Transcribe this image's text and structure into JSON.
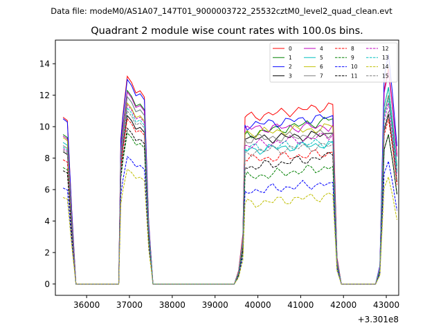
{
  "figure": {
    "suptitle": "Data file: modeM0/AS1A07_147T01_9000003722_25532cztM0_level2_quad_clean.evt",
    "title": "Quadrant 2 module wise count rates with 100.0s bins.",
    "offset_label": "+3.301e8"
  },
  "chart_data": {
    "type": "line",
    "title": "Quadrant 2 module wise count rates with 100.0s bins.",
    "xlabel": "",
    "ylabel": "",
    "x_offset": 330100000,
    "xlim": [
      35270,
      43290
    ],
    "ylim": [
      -0.72,
      15.5
    ],
    "xticks": [
      36000,
      37000,
      38000,
      39000,
      40000,
      41000,
      42000,
      43000
    ],
    "yticks": [
      0,
      2,
      4,
      6,
      8,
      10,
      12,
      14
    ],
    "xtick_labels": [
      "36000",
      "37000",
      "38000",
      "39000",
      "40000",
      "41000",
      "42000",
      "43000"
    ],
    "ytick_labels": [
      "0",
      "2",
      "4",
      "6",
      "8",
      "10",
      "12",
      "14"
    ],
    "grid": false,
    "legend": {
      "placement": "top-right",
      "columns": 4
    },
    "segments": [
      {
        "start": 35450,
        "end": 37550
      },
      {
        "start": 39550,
        "end": 41850
      },
      {
        "start": 42950,
        "end": 43250
      }
    ],
    "series": [
      {
        "name": "0",
        "color": "#ff0000",
        "style": "solid",
        "levels": [
          10.6,
          13.2,
          10.6,
          11.3,
          13.7
        ]
      },
      {
        "name": "1",
        "color": "#008000",
        "style": "solid",
        "levels": [
          9.5,
          12.3,
          9.5,
          10.4,
          12.5
        ]
      },
      {
        "name": "2",
        "color": "#0000ff",
        "style": "solid",
        "levels": [
          10.5,
          13.0,
          10.1,
          10.6,
          14.6
        ]
      },
      {
        "name": "3",
        "color": "#000000",
        "style": "solid",
        "levels": [
          8.4,
          10.7,
          9.2,
          9.5,
          10.8
        ]
      },
      {
        "name": "4",
        "color": "#bf00bf",
        "style": "solid",
        "levels": [
          9.4,
          12.2,
          9.9,
          10.0,
          13.5
        ]
      },
      {
        "name": "5",
        "color": "#00bfbf",
        "style": "solid",
        "levels": [
          9.0,
          11.9,
          8.5,
          8.9,
          12.5
        ]
      },
      {
        "name": "6",
        "color": "#bfbf00",
        "style": "solid",
        "levels": [
          9.3,
          11.5,
          9.6,
          9.9,
          12.0
        ]
      },
      {
        "name": "7",
        "color": "#808080",
        "style": "solid",
        "levels": [
          8.8,
          11.9,
          9.2,
          9.5,
          12.0
        ]
      },
      {
        "name": "8",
        "color": "#ff0000",
        "style": "dashed",
        "levels": [
          7.9,
          10.5,
          7.9,
          8.3,
          10.5
        ]
      },
      {
        "name": "9",
        "color": "#008000",
        "style": "dashed",
        "levels": [
          7.4,
          9.6,
          6.8,
          7.4,
          9.5
        ]
      },
      {
        "name": "10",
        "color": "#0000ff",
        "style": "dashed",
        "levels": [
          6.1,
          8.1,
          5.9,
          6.4,
          7.8
        ]
      },
      {
        "name": "11",
        "color": "#000000",
        "style": "dashed",
        "levels": [
          7.2,
          9.9,
          7.4,
          8.1,
          9.5
        ]
      },
      {
        "name": "12",
        "color": "#bf00bf",
        "style": "dashed",
        "levels": [
          8.6,
          11.4,
          8.8,
          9.4,
          11.5
        ]
      },
      {
        "name": "13",
        "color": "#00bfbf",
        "style": "dashed",
        "levels": [
          8.7,
          11.2,
          8.6,
          9.0,
          11.8
        ]
      },
      {
        "name": "14",
        "color": "#bfbf00",
        "style": "dashed",
        "levels": [
          5.5,
          7.3,
          5.1,
          5.6,
          6.8
        ]
      },
      {
        "name": "15",
        "color": "#808080",
        "style": "dashed",
        "levels": [
          8.5,
          11.0,
          8.4,
          8.8,
          11.0
        ]
      }
    ]
  }
}
